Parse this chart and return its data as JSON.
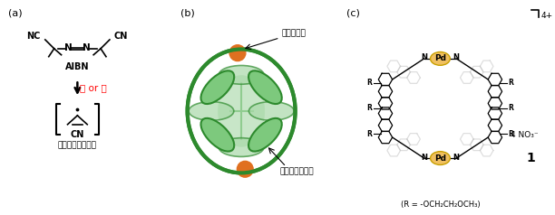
{
  "bg_color": "#ffffff",
  "text_color": "#000000",
  "red_color": "#ff0000",
  "green_dark": "#2d8a2d",
  "green_light": "#7dc97d",
  "green_pale": "#c8e6c8",
  "orange_color": "#e07020",
  "gold_color": "#f0c060",
  "note_a": "(a)",
  "note_b": "(b)",
  "note_c": "(c)",
  "aibn_label": "AIBN",
  "light_heat": "光 or 熱",
  "radical_label": "ラジカル種の発生",
  "metal_ion_label": "金属イオン",
  "anthracene_label": "アントラセン環",
  "charge_label": "4+",
  "no3_label": "4 NO₃⁻",
  "compound_label": "1",
  "r_def_label": "(R = -OCH₂CH₂OCH₃)"
}
